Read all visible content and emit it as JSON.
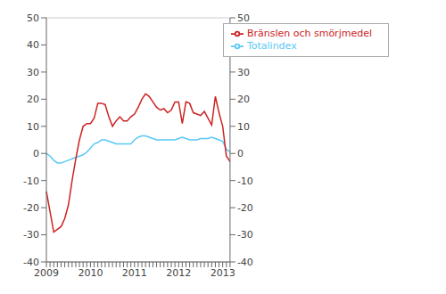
{
  "chart_data": {
    "type": "line",
    "categories": [
      "2009",
      null,
      null,
      null,
      null,
      null,
      null,
      null,
      null,
      null,
      null,
      null,
      "2010",
      null,
      null,
      null,
      null,
      null,
      null,
      null,
      null,
      null,
      null,
      null,
      "2011",
      null,
      null,
      null,
      null,
      null,
      null,
      null,
      null,
      null,
      null,
      null,
      "2012",
      null,
      null,
      null,
      null,
      null,
      null,
      null,
      null,
      null,
      null,
      null,
      "2013",
      null,
      null
    ],
    "series": [
      {
        "name": "Totalindex",
        "color": "#5bc8f5",
        "values": [
          0.0,
          -1.0,
          -2.5,
          -3.5,
          -3.5,
          -3.0,
          -2.5,
          -2.0,
          -1.5,
          -1.0,
          -0.5,
          0.5,
          2.0,
          3.5,
          4.0,
          5.0,
          5.0,
          4.5,
          4.0,
          3.5,
          3.5,
          3.5,
          3.5,
          3.5,
          5.0,
          6.0,
          6.5,
          6.5,
          6.0,
          5.5,
          5.0,
          5.0,
          5.0,
          5.0,
          5.0,
          5.0,
          5.5,
          6.0,
          5.5,
          5.0,
          5.0,
          5.0,
          5.5,
          5.5,
          5.5,
          6.0,
          5.5,
          5.0,
          4.5,
          1.5,
          0.5
        ]
      },
      {
        "name": "Bränslen och smörjmedel",
        "color": "#cc2222",
        "values": [
          -14.0,
          -21.5,
          -29.0,
          -28.0,
          -27.0,
          -24.0,
          -19.0,
          -10.0,
          -2.0,
          5.0,
          10.0,
          11.0,
          11.0,
          13.0,
          18.5,
          18.5,
          18.0,
          13.5,
          10.0,
          12.0,
          13.5,
          12.0,
          12.0,
          13.5,
          14.5,
          17.0,
          20.0,
          22.0,
          21.0,
          19.0,
          17.0,
          16.0,
          16.5,
          15.0,
          16.0,
          19.0,
          19.0,
          11.0,
          19.0,
          18.5,
          15.0,
          14.5,
          14.0,
          15.5,
          13.0,
          10.5,
          21.0,
          15.0,
          10.0,
          -1.0,
          -3.0
        ]
      }
    ],
    "ylim": [
      -40,
      50
    ],
    "yticks": [
      -40,
      -30,
      -20,
      -10,
      0,
      10,
      20,
      30,
      40,
      50
    ],
    "y2lim": [
      -40,
      50
    ],
    "y2ticks": [
      -40,
      -30,
      -20,
      -10,
      0,
      10,
      20,
      30,
      40,
      50
    ],
    "grid": true,
    "legend": "upper right"
  }
}
